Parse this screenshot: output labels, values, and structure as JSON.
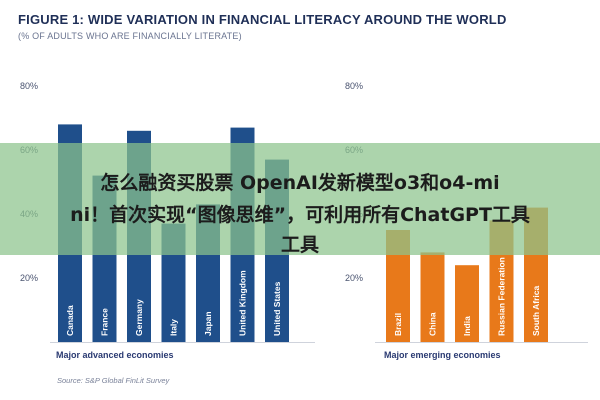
{
  "figure": {
    "title": "FIGURE 1: WIDE VARIATION IN FINANCIAL LITERACY AROUND THE WORLD",
    "subtitle": "(% OF ADULTS WHO ARE FINANCIALLY LITERATE)",
    "source": "Source: S&P Global FinLit Survey"
  },
  "colors": {
    "advanced_bar": "#1f4f8b",
    "emerging_bar": "#e8791a",
    "axis_line": "#cfd3dc",
    "group_label": "#2a3a72"
  },
  "overlay": {
    "line1": "怎么融资买股票 OpenAI发新模型o3和o4-mi",
    "line2": "ni！首次实现“图像思维”，可利用所有ChatGPT工具",
    "line3": "工具"
  },
  "chart_data": [
    {
      "type": "bar",
      "group": "Major advanced economies",
      "categories": [
        "Canada",
        "France",
        "Germany",
        "Italy",
        "Japan",
        "United Kingdom",
        "United States"
      ],
      "values": [
        68,
        52,
        66,
        37,
        43,
        67,
        57
      ],
      "yticks": [
        "80%",
        "60%",
        "40%",
        "20%"
      ],
      "ylim": [
        0,
        80
      ],
      "color": "#1f4f8b"
    },
    {
      "type": "bar",
      "group": "Major emerging economies",
      "categories": [
        "Brazil",
        "China",
        "India",
        "Russian Federation",
        "South Africa"
      ],
      "values": [
        35,
        28,
        24,
        38,
        42
      ],
      "yticks": [
        "80%",
        "60%",
        "40%",
        "20%"
      ],
      "ylim": [
        0,
        80
      ],
      "color": "#e8791a"
    }
  ]
}
